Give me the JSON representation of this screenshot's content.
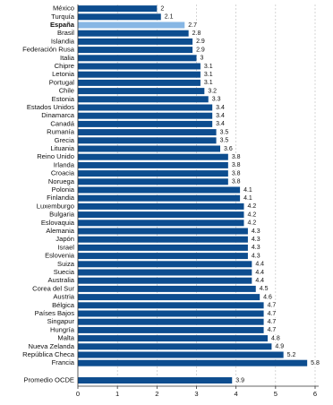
{
  "chart_data": {
    "type": "bar",
    "orientation": "horizontal",
    "categories": [
      "México",
      "Turquía",
      "España",
      "Brasil",
      "Islandia",
      "Federación Rusa",
      "Italia",
      "Chipre",
      "Letonia",
      "Portugal",
      "Chile",
      "Estonia",
      "Estados Unidos",
      "Dinamarca",
      "Canadá",
      "Rumanía",
      "Grecia",
      "Lituania",
      "Reino Unido",
      "Irlanda",
      "Croacia",
      "Noruega",
      "Polonia",
      "Finlandia",
      "Luxemburgo",
      "Bulgaria",
      "Eslovaquia",
      "Alemania",
      "Japón",
      "Israel",
      "Eslovenia",
      "Suiza",
      "Suecia",
      "Australia",
      "Corea del Sur",
      "Austria",
      "Bélgica",
      "Países Bajos",
      "Singapur",
      "Hungría",
      "Malta",
      "Nueva Zelanda",
      "República Checa",
      "Francia"
    ],
    "values": [
      2,
      2.1,
      2.7,
      2.8,
      2.9,
      2.9,
      3,
      3.1,
      3.1,
      3.1,
      3.2,
      3.3,
      3.4,
      3.4,
      3.4,
      3.5,
      3.5,
      3.6,
      3.8,
      3.8,
      3.8,
      3.8,
      4.1,
      4.1,
      4.2,
      4.2,
      4.2,
      4.3,
      4.3,
      4.3,
      4.3,
      4.4,
      4.4,
      4.4,
      4.5,
      4.6,
      4.7,
      4.7,
      4.7,
      4.7,
      4.8,
      4.9,
      5.2,
      5.8
    ],
    "color": "#0d4d8f",
    "highlight": "España",
    "highlight_color": "#86b6e4",
    "average": {
      "label": "Promedio OCDE",
      "value": 3.9
    },
    "xlim": [
      0,
      6
    ],
    "xticks": [
      0,
      1,
      2,
      3,
      4,
      5,
      6
    ],
    "grid": true
  }
}
